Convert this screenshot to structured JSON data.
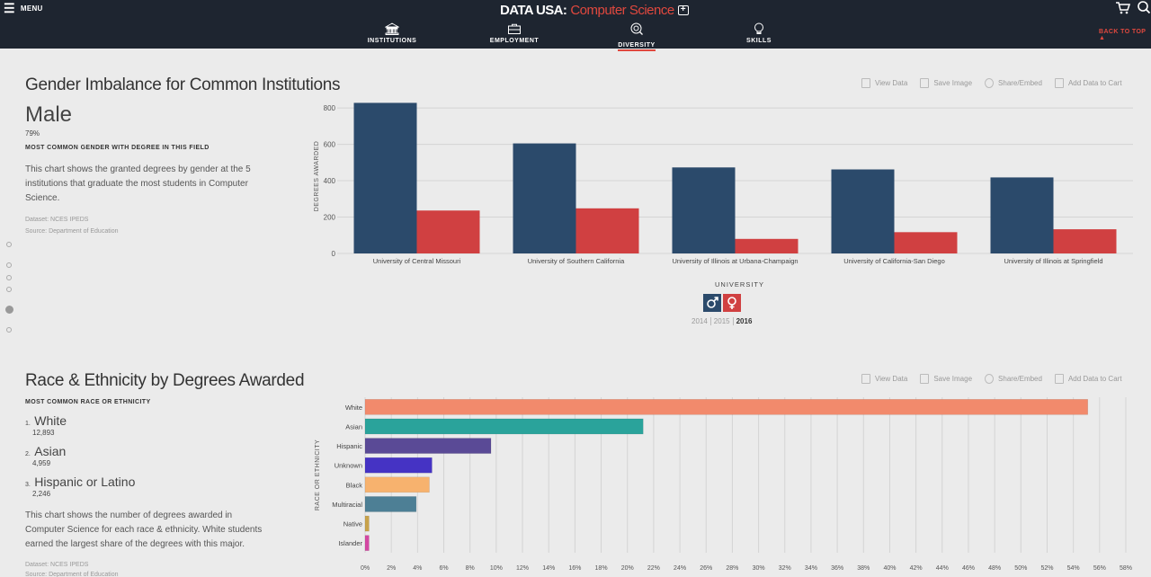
{
  "nav": {
    "menu_label": "MENU",
    "logo": "DATA USA:",
    "crumb": "Computer Science",
    "tabs": [
      {
        "label": "INSTITUTIONS",
        "icon": "institution-icon"
      },
      {
        "label": "EMPLOYMENT",
        "icon": "briefcase-icon"
      },
      {
        "label": "DIVERSITY",
        "icon": "diversity-icon",
        "active": true
      },
      {
        "label": "SKILLS",
        "icon": "lightbulb-icon"
      }
    ],
    "back_to_top": "BACK TO TOP ▲"
  },
  "toolbar": {
    "view_data": "View Data",
    "save_image": "Save Image",
    "share_embed": "Share/Embed",
    "add_to_cart": "Add Data to Cart"
  },
  "gender_section": {
    "title": "Gender Imbalance for Common Institutions",
    "stat_value": "Male",
    "stat_pct": "79%",
    "stat_caption": "MOST COMMON GENDER WITH DEGREE IN THIS FIELD",
    "description": "This chart shows the granted degrees by gender at the 5 institutions that graduate the most students in Computer Science.",
    "dataset": "Dataset: NCES IPEDS",
    "source": "Source: Department of Education",
    "years": [
      "2014",
      "2015",
      "2016"
    ],
    "active_year": "2016"
  },
  "race_section": {
    "title": "Race & Ethnicity by Degrees Awarded",
    "caption": "MOST COMMON RACE OR ETHNICITY",
    "ranks": [
      {
        "num": "1.",
        "name": "White",
        "value": "12,893"
      },
      {
        "num": "2.",
        "name": "Asian",
        "value": "4,959"
      },
      {
        "num": "3.",
        "name": "Hispanic or Latino",
        "value": "2,246"
      }
    ],
    "description": "This chart shows the number of degrees awarded in Computer Science for each race & ethnicity. White students earned the largest share of the degrees with this major.",
    "dataset": "Dataset: NCES IPEDS",
    "source": "Source: Department of Education"
  },
  "chart_data": [
    {
      "type": "bar",
      "xlabel": "UNIVERSITY",
      "ylabel": "DEGREES AWARDED",
      "ylim": [
        0,
        850
      ],
      "yticks": [
        0,
        200,
        400,
        600,
        800
      ],
      "categories": [
        "University of Central Missouri",
        "University of Southern California",
        "University of Illinois at Urbana-Champaign",
        "University of California-San Diego",
        "University of Illinois at Springfield"
      ],
      "series": [
        {
          "name": "Male",
          "color": "#2b4a6b",
          "values": [
            828,
            605,
            473,
            462,
            418
          ]
        },
        {
          "name": "Female",
          "color": "#d04041",
          "values": [
            236,
            248,
            80,
            117,
            133
          ]
        }
      ],
      "grid": true,
      "legend": "bottom-center"
    },
    {
      "type": "bar",
      "orientation": "horizontal",
      "ylabel": "RACE OR ETHNICITY",
      "xlim": [
        0,
        58
      ],
      "xticks": [
        0,
        2,
        4,
        6,
        8,
        10,
        12,
        14,
        16,
        18,
        20,
        22,
        24,
        26,
        28,
        30,
        32,
        34,
        36,
        38,
        40,
        42,
        44,
        46,
        48,
        50,
        52,
        54,
        56,
        58
      ],
      "tick_suffix": "%",
      "categories": [
        "White",
        "Asian",
        "Hispanic",
        "Unknown",
        "Black",
        "Multiracial",
        "Native",
        "Islander"
      ],
      "values": [
        55.1,
        21.2,
        9.6,
        5.1,
        4.9,
        3.9,
        0.3,
        0.3
      ],
      "colors": [
        "#f28a6c",
        "#2aa39b",
        "#5a4a96",
        "#4533c4",
        "#f7b26e",
        "#4d7f95",
        "#c8a24a",
        "#d447a3"
      ],
      "grid": true
    }
  ]
}
